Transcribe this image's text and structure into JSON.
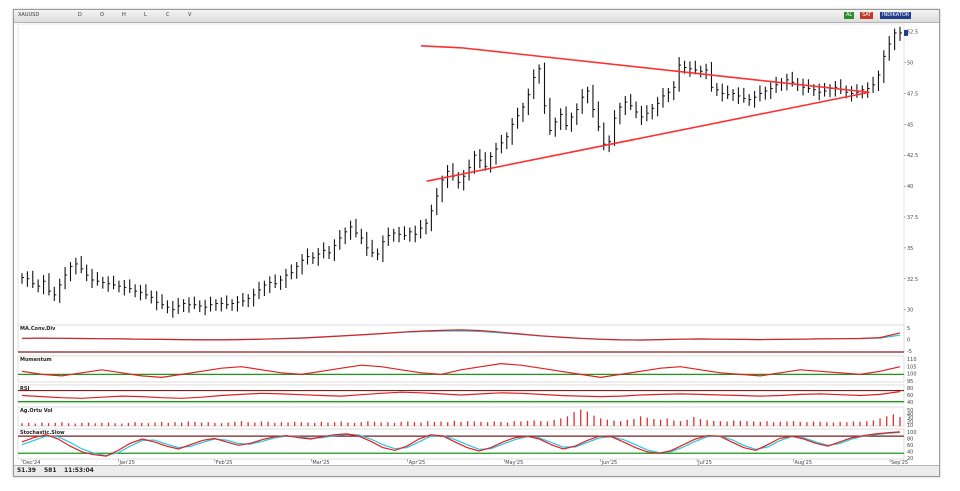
{
  "toolbar": {
    "symbol_text": "XAUUSD",
    "segments": [
      "D",
      "O",
      "H",
      "L",
      "C",
      "V"
    ],
    "badges": [
      {
        "text": "AL",
        "color": "#2e8b2e"
      },
      {
        "text": "SAT",
        "color": "#c0392b"
      },
      {
        "text": "INDİKATÖR",
        "color": "#1f3f8a"
      }
    ]
  },
  "status": {
    "left_value": "51.39",
    "left_code": "581",
    "time": "11:53:04"
  },
  "chart_data": {
    "type": "line",
    "main": {
      "kind": "ohlc-bars",
      "x_start": 0,
      "x_end": 230,
      "y_ticks": [
        "52.5",
        "50",
        "47.5",
        "45",
        "42.5",
        "40",
        "37.5",
        "35",
        "32.5",
        "30"
      ],
      "ylim": [
        29,
        52.8
      ],
      "series_close": [
        32.6,
        32.5,
        32.1,
        31.9,
        32.3,
        31.5,
        31.2,
        32.0,
        32.8,
        33.5,
        33.7,
        33.3,
        32.8,
        32.4,
        32.3,
        32.2,
        32.1,
        32.0,
        31.9,
        31.8,
        31.7,
        31.5,
        31.4,
        31.2,
        31.0,
        30.6,
        30.4,
        30.2,
        30.0,
        30.3,
        30.5,
        30.4,
        30.4,
        30.3,
        30.2,
        30.4,
        30.5,
        30.5,
        30.4,
        30.5,
        30.6,
        30.7,
        30.9,
        31.2,
        31.6,
        32.0,
        32.2,
        32.1,
        32.4,
        32.8,
        33.0,
        33.5,
        34.0,
        34.3,
        34.2,
        34.5,
        34.8,
        34.6,
        35.2,
        35.8,
        36.3,
        36.7,
        36.2,
        35.8,
        35.0,
        34.6,
        34.5,
        35.5,
        36.0,
        36.2,
        36.1,
        36.0,
        36.3,
        36.1,
        36.6,
        37.0,
        38.0,
        39.2,
        40.5,
        41.2,
        40.8,
        40.3,
        40.8,
        41.5,
        42.5,
        42.1,
        41.6,
        42.4,
        43.0,
        43.5,
        44.0,
        45.0,
        45.7,
        46.4,
        47.4,
        48.8,
        49.5,
        46.5,
        44.5,
        45.2,
        45.8,
        44.9,
        45.6,
        46.2,
        47.2,
        47.7,
        46.2,
        44.8,
        43.4,
        43.6,
        45.5,
        46.4,
        46.8,
        46.5,
        46.0,
        45.6,
        45.9,
        46.3,
        46.7,
        47.3,
        47.6,
        48.0,
        49.8,
        49.6,
        49.5,
        49.4,
        49.3,
        49.4,
        48.0,
        47.8,
        47.5,
        47.4,
        47.5,
        47.3,
        47.1,
        47.0,
        47.2,
        47.5,
        47.7,
        47.9,
        48.2,
        48.4,
        48.6,
        48.4,
        48.2,
        48.0,
        47.9,
        47.8,
        47.6,
        47.7,
        47.9,
        48.0,
        47.8,
        47.6,
        47.5,
        47.6,
        47.8,
        47.9,
        48.2,
        49.0,
        50.5,
        51.5,
        52.4,
        52.4
      ],
      "triangle": {
        "upper": [
          [
            115,
            51.2
          ],
          [
            222,
            47.6
          ]
        ],
        "lower": [
          [
            106,
            40.4
          ],
          [
            222,
            47.6
          ]
        ]
      }
    },
    "indicators": [
      {
        "name": "MA.Conv.Div",
        "ticks": [
          "5",
          "0",
          "-5"
        ],
        "s1": [
          0.1,
          0.2,
          0.1,
          0.0,
          -0.1,
          -0.2,
          -0.3,
          -0.4,
          -0.5,
          -0.6,
          -0.6,
          -0.5,
          -0.3,
          -0.1,
          0.2,
          0.6,
          1.1,
          1.6,
          2.2,
          2.8,
          3.3,
          3.6,
          3.8,
          3.5,
          2.8,
          2.0,
          1.2,
          0.6,
          0.1,
          -0.3,
          -0.6,
          -0.7,
          -0.5,
          -0.3,
          -0.2,
          -0.3,
          -0.4,
          -0.5,
          -0.4,
          -0.3,
          -0.2,
          -0.1,
          0.0,
          0.4,
          2.5
        ],
        "s2": [
          0.0,
          0.1,
          0.1,
          0.0,
          -0.1,
          -0.2,
          -0.3,
          -0.4,
          -0.5,
          -0.5,
          -0.5,
          -0.4,
          -0.3,
          0.0,
          0.3,
          0.7,
          1.2,
          1.7,
          2.2,
          2.7,
          3.1,
          3.3,
          3.4,
          3.1,
          2.5,
          1.8,
          1.1,
          0.5,
          0.0,
          -0.4,
          -0.6,
          -0.6,
          -0.5,
          -0.3,
          -0.3,
          -0.3,
          -0.4,
          -0.5,
          -0.4,
          -0.3,
          -0.2,
          -0.1,
          0.0,
          0.2,
          1.5
        ],
        "ylim": [
          -6,
          6
        ],
        "ref": [
          -6
        ]
      },
      {
        "name": "Momentum",
        "ticks": [
          "110",
          "105",
          "100",
          "95"
        ],
        "s1": [
          101,
          99,
          98,
          100,
          102,
          100,
          98,
          97,
          99,
          101,
          103,
          104,
          102,
          100,
          99,
          101,
          103,
          105,
          104,
          102,
          100,
          99,
          102,
          104,
          106,
          105,
          103,
          101,
          99,
          97,
          99,
          101,
          103,
          104,
          102,
          100,
          99,
          98,
          100,
          102,
          101,
          100,
          99,
          101,
          104
        ],
        "ylim": [
          94,
          111
        ],
        "ref": [
          99
        ]
      },
      {
        "name": "RSI",
        "ticks": [
          "80",
          "60",
          "40"
        ],
        "s1": [
          52,
          48,
          44,
          42,
          46,
          50,
          48,
          44,
          42,
          46,
          52,
          56,
          60,
          58,
          55,
          52,
          50,
          55,
          60,
          64,
          62,
          58,
          54,
          58,
          62,
          60,
          56,
          52,
          50,
          48,
          50,
          54,
          56,
          58,
          56,
          54,
          52,
          50,
          52,
          56,
          58,
          55,
          52,
          56,
          66
        ],
        "ylim": [
          25,
          90
        ],
        "ref": [
          70,
          30
        ]
      },
      {
        "name": "Ag.Ortu Vol",
        "ticks": [
          "50",
          "40",
          "30",
          "20",
          "10"
        ],
        "bars": [
          8,
          9,
          7,
          10,
          8,
          9,
          11,
          8,
          7,
          9,
          10,
          8,
          9,
          10,
          8,
          7,
          9,
          11,
          9,
          8,
          10,
          12,
          9,
          11,
          10,
          13,
          12,
          10,
          11,
          9,
          8,
          10,
          12,
          14,
          11,
          10,
          13,
          12,
          9,
          11,
          10,
          12,
          11,
          10,
          9,
          12,
          10,
          11,
          13,
          10,
          9,
          11,
          14,
          12,
          10,
          11,
          9,
          12,
          13,
          11,
          10,
          14,
          12,
          13,
          11,
          15,
          12,
          14,
          13,
          12,
          11,
          13,
          12,
          10,
          14,
          13,
          15,
          16,
          14,
          13,
          18,
          22,
          28,
          40,
          48,
          42,
          30,
          22,
          18,
          16,
          14,
          18,
          20,
          28,
          24,
          20,
          18,
          22,
          16,
          14,
          18,
          26,
          20,
          17,
          15,
          14,
          13,
          16,
          15,
          14,
          13,
          12,
          14,
          11,
          12,
          13,
          14,
          12,
          11,
          13,
          12,
          11,
          10,
          12,
          11,
          13,
          12,
          14,
          16,
          22,
          28,
          34,
          26
        ],
        "ylim": [
          0,
          55
        ]
      },
      {
        "name": "Stochastic.Slow",
        "ticks": [
          "100",
          "80",
          "60",
          "40",
          "20"
        ],
        "s1": [
          60,
          75,
          85,
          70,
          45,
          25,
          15,
          10,
          30,
          55,
          70,
          60,
          45,
          35,
          50,
          65,
          72,
          60,
          48,
          55,
          68,
          78,
          82,
          75,
          70,
          78,
          85,
          88,
          80,
          62,
          40,
          30,
          45,
          70,
          85,
          80,
          60,
          40,
          28,
          40,
          60,
          75,
          80,
          70,
          50,
          35,
          45,
          65,
          80,
          78,
          60,
          40,
          25,
          20,
          30,
          50,
          70,
          82,
          80,
          60,
          40,
          30,
          50,
          72,
          80,
          70,
          55,
          45,
          60,
          75,
          82,
          88,
          92,
          95
        ],
        "s2": [
          50,
          65,
          80,
          78,
          58,
          35,
          20,
          12,
          22,
          45,
          65,
          66,
          52,
          40,
          44,
          58,
          70,
          66,
          54,
          52,
          62,
          74,
          80,
          78,
          72,
          75,
          82,
          86,
          84,
          70,
          50,
          36,
          40,
          60,
          80,
          82,
          68,
          50,
          34,
          36,
          52,
          68,
          78,
          74,
          58,
          42,
          42,
          58,
          74,
          78,
          68,
          50,
          32,
          22,
          26,
          42,
          62,
          78,
          80,
          68,
          48,
          34,
          42,
          64,
          78,
          74,
          60,
          48,
          54,
          70,
          80,
          85,
          90,
          93
        ],
        "ylim": [
          0,
          105
        ],
        "ref": [
          80,
          20
        ]
      }
    ],
    "x_ticks": [
      "Dec'24",
      "Jan'25",
      "Feb'25",
      "Mar'25",
      "Apr'25",
      "May'25",
      "Jun'25",
      "Jul'25",
      "Aug'25",
      "Sep'25"
    ]
  }
}
